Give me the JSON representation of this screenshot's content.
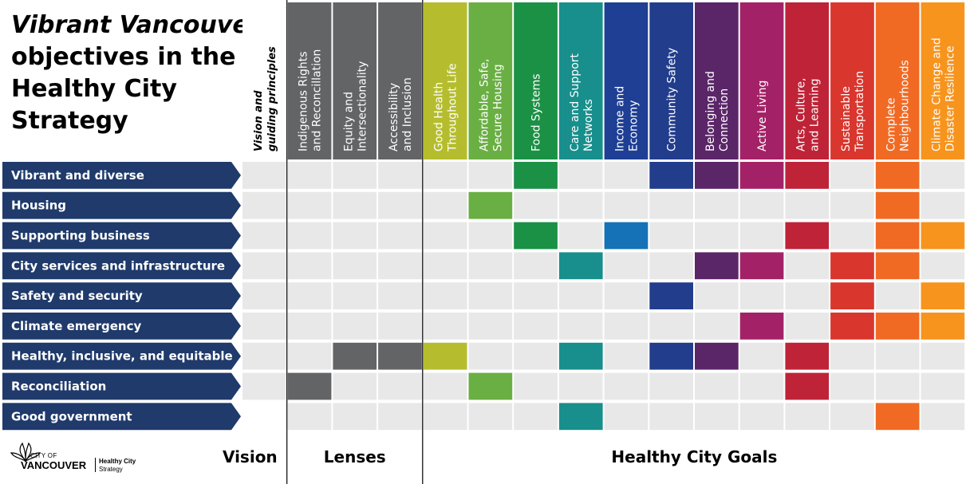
{
  "title": {
    "emph": "Vibrant Vancouver",
    "rest": "objectives in the Healthy City Strategy"
  },
  "logo": {
    "city_of": "CITY OF",
    "city_name": "VANCOUVER",
    "strategy_line1": "Healthy City",
    "strategy_line2": "Strategy"
  },
  "chart_data": {
    "type": "heatmap",
    "columns": [
      {
        "lines": [
          "Vision and",
          "guiding principles"
        ],
        "color": "#ffffff",
        "group": "Vision"
      },
      {
        "lines": [
          "Indigenous Rights",
          "and Reconcillation"
        ],
        "color": "#636466",
        "group": "Lenses"
      },
      {
        "lines": [
          "Equity and",
          "Intersectionality"
        ],
        "color": "#636466",
        "group": "Lenses"
      },
      {
        "lines": [
          "Accessibility",
          "and Inclusion"
        ],
        "color": "#636466",
        "group": "Lenses"
      },
      {
        "lines": [
          "Good Health",
          "Throughout Life"
        ],
        "color": "#b5bd2e",
        "group": "Healthy City Goals"
      },
      {
        "lines": [
          "Affordable, Safe,",
          "Secure Housing"
        ],
        "color": "#6aaf43",
        "group": "Healthy City Goals"
      },
      {
        "lines": [
          "Food Systems"
        ],
        "color": "#1b9145",
        "group": "Healthy City Goals"
      },
      {
        "lines": [
          "Care and Support",
          "Networks"
        ],
        "color": "#188f8c",
        "group": "Healthy City Goals"
      },
      {
        "lines": [
          "Income and",
          "Economy"
        ],
        "color": "#1e3f94",
        "group": "Healthy City Goals"
      },
      {
        "lines": [
          "Community Safety"
        ],
        "color": "#223d8c",
        "group": "Healthy City Goals"
      },
      {
        "lines": [
          "Belonging and",
          "Connection"
        ],
        "color": "#5a2668",
        "group": "Healthy City Goals"
      },
      {
        "lines": [
          "Active Living"
        ],
        "color": "#a32267",
        "group": "Healthy City Goals"
      },
      {
        "lines": [
          "Arts, Culture,",
          "and Learning"
        ],
        "color": "#bf2337",
        "group": "Healthy City Goals"
      },
      {
        "lines": [
          "Sustainable",
          "Transportation"
        ],
        "color": "#d9362e",
        "group": "Healthy City Goals"
      },
      {
        "lines": [
          "Complete",
          "Neighbourhoods"
        ],
        "color": "#f06a24",
        "group": "Healthy City Goals"
      },
      {
        "lines": [
          "Climate Change and",
          "Disaster Resilience"
        ],
        "color": "#f7941d",
        "group": "Healthy City Goals"
      }
    ],
    "rows": [
      {
        "label": "Vibrant and diverse",
        "cells": [
          0,
          0,
          0,
          0,
          0,
          0,
          1,
          0,
          0,
          1,
          1,
          1,
          1,
          0,
          1,
          0
        ]
      },
      {
        "label": "Housing",
        "cells": [
          0,
          0,
          0,
          0,
          0,
          1,
          0,
          0,
          0,
          0,
          0,
          0,
          0,
          0,
          1,
          0
        ]
      },
      {
        "label": "Supporting business",
        "cells": [
          0,
          0,
          0,
          0,
          0,
          0,
          1,
          0,
          1,
          0,
          0,
          0,
          1,
          0,
          1,
          1
        ]
      },
      {
        "label": "City services and infrastructure",
        "cells": [
          0,
          0,
          0,
          0,
          0,
          0,
          0,
          1,
          0,
          0,
          1,
          1,
          0,
          1,
          1,
          0
        ]
      },
      {
        "label": "Safety and security",
        "cells": [
          0,
          0,
          0,
          0,
          0,
          0,
          0,
          0,
          0,
          1,
          0,
          0,
          0,
          1,
          0,
          1
        ]
      },
      {
        "label": "Climate emergency",
        "cells": [
          0,
          0,
          0,
          0,
          0,
          0,
          0,
          0,
          0,
          0,
          0,
          1,
          0,
          1,
          1,
          1
        ]
      },
      {
        "label": "Healthy, inclusive, and equitable",
        "cells": [
          0,
          0,
          1,
          1,
          1,
          0,
          0,
          1,
          0,
          1,
          1,
          0,
          1,
          0,
          0,
          0
        ]
      },
      {
        "label": "Reconciliation",
        "cells": [
          0,
          1,
          0,
          0,
          0,
          1,
          0,
          0,
          0,
          0,
          0,
          0,
          1,
          0,
          0,
          0
        ]
      },
      {
        "label": "Good government",
        "cells": [
          1,
          0,
          0,
          0,
          0,
          0,
          0,
          1,
          0,
          0,
          0,
          0,
          0,
          0,
          1,
          0
        ]
      }
    ],
    "cell_overrides": {
      "2-8": "#1572b6",
      "0-0": "#000000"
    },
    "sections": [
      "Vision",
      "Lenses",
      "Healthy City Goals"
    ],
    "empty_color": "#e8e8e8",
    "row_label_color": "#1f3a6b"
  }
}
